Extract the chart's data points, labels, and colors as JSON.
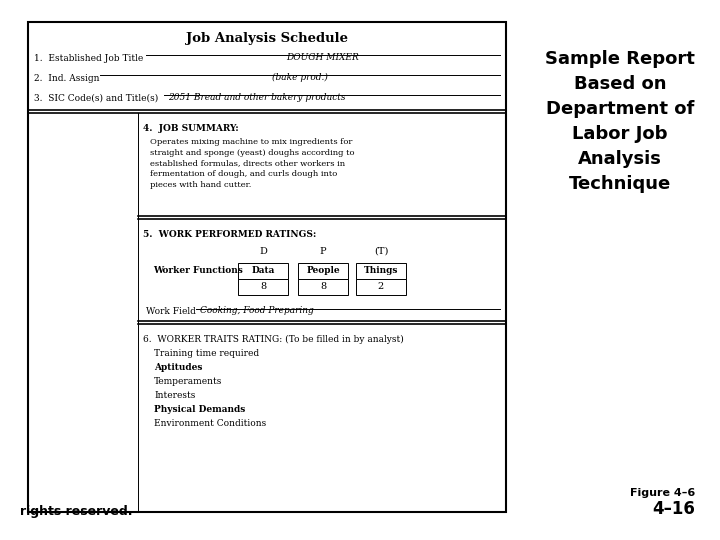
{
  "title_right": "Sample Report\nBased on\nDepartment of\nLabor Job\nAnalysis\nTechnique",
  "figure_label": "Figure 4–6",
  "figure_number": "4–16",
  "bottom_left": "rights reserved.",
  "form_title": "Job Analysis Schedule",
  "field1_label": "1.  Established Job Title",
  "field1_value": "DOUGH MIXER",
  "field2_label": "2.  Ind. Assign",
  "field2_value": "(bake prod.)",
  "field3_label": "3.  SIC Code(s) and Title(s)",
  "field3_value": "2051 Bread and other bakery products",
  "section4_title": "4.  JOB SUMMARY:",
  "section4_text": "Operates mixing machine to mix ingredients for\nstraight and sponge (yeast) doughs according to\nestablished formulas, directs other workers in\nfermentation of dough, and curls dough into\npieces with hand cutter.",
  "section5_title": "5.  WORK PERFORMED RATINGS:",
  "col_d": "D",
  "col_p": "P",
  "col_t": "(T)",
  "col_d_label": "Data",
  "col_p_label": "People",
  "col_t_label": "Things",
  "row_label": "Worker Functions",
  "val_d": "8",
  "val_p": "8",
  "val_t": "2",
  "work_field_label": "Work Field",
  "work_field_value": "Cooking, Food Preparing",
  "section6_title": "6.  WORKER TRAITS RATING: (To be filled in by analyst)",
  "trait1": "Training time required",
  "trait2": "Aptitudes",
  "trait3": "Temperaments",
  "trait4": "Interests",
  "trait5": "Physical Demands",
  "trait6": "Environment Conditions",
  "bg_color": "#ffffff",
  "box_color": "#000000",
  "text_color": "#000000"
}
